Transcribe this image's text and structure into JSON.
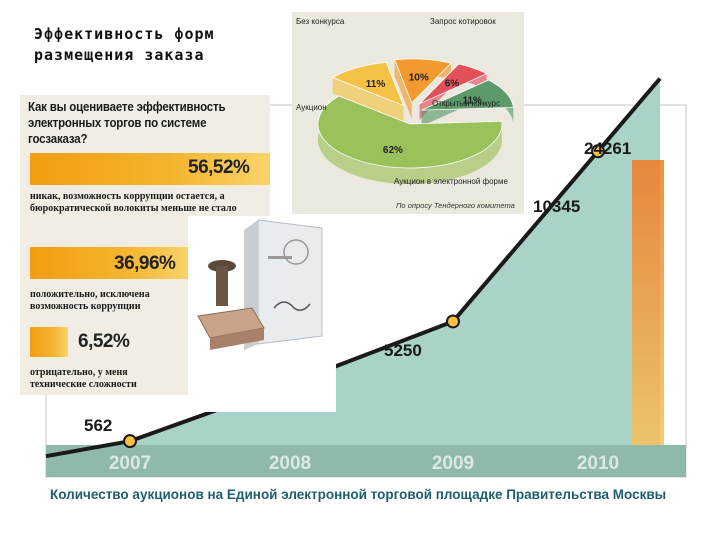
{
  "title_lines": [
    "Эффективность форм",
    "размещения заказа"
  ],
  "caption": "Количество аукционов на Единой электронной торговой площадке Правительства Москвы",
  "survey": {
    "question": "Как вы оцениваете эффективность электронных торгов по системе госзаказа?",
    "items": [
      {
        "value": 56.52,
        "label": "56,52%",
        "text": "никак, возможность коррупции остается, а бюрократической волокиты меньше не стало"
      },
      {
        "value": 36.96,
        "label": "36,96%",
        "text": "положительно, исключена возможность коррупции"
      },
      {
        "value": 6.52,
        "label": "6,52%",
        "text": "отрицательно, у меня технические сложности"
      }
    ]
  },
  "pie": {
    "caption": "По опросу Тендерного комитета",
    "slices": [
      {
        "label": "Без конкурса",
        "value": 11,
        "text": "11%",
        "color": "#f4c346"
      },
      {
        "label": "Запрос котировок",
        "value": 10,
        "text": "10%",
        "color": "#f29a2e"
      },
      {
        "label": "",
        "value": 6,
        "text": "6%",
        "color": "#e2505a"
      },
      {
        "label": "Открытый конкурс",
        "value": 11,
        "text": "11%",
        "color": "#5c9a6b"
      },
      {
        "label": "Аукцион в электронной форме",
        "value": 62,
        "text": "62%",
        "color": "#9bc25a"
      },
      {
        "label": "Аукцион",
        "value": 0,
        "text": "",
        "color": "#f4c346"
      }
    ]
  },
  "chart_data": {
    "type": "area",
    "categories": [
      "2007",
      "2008",
      "2009",
      "2010"
    ],
    "x": [
      2007,
      2008,
      2009,
      2010
    ],
    "values": [
      562,
      5250,
      10345,
      24261
    ],
    "value_labels": [
      "562",
      "5250",
      "10345",
      "24261"
    ],
    "colors": {
      "area": "#a9d2c8",
      "line": "#1a1a1a",
      "marker": "#f6c141",
      "accent": "#f08a2c"
    }
  }
}
